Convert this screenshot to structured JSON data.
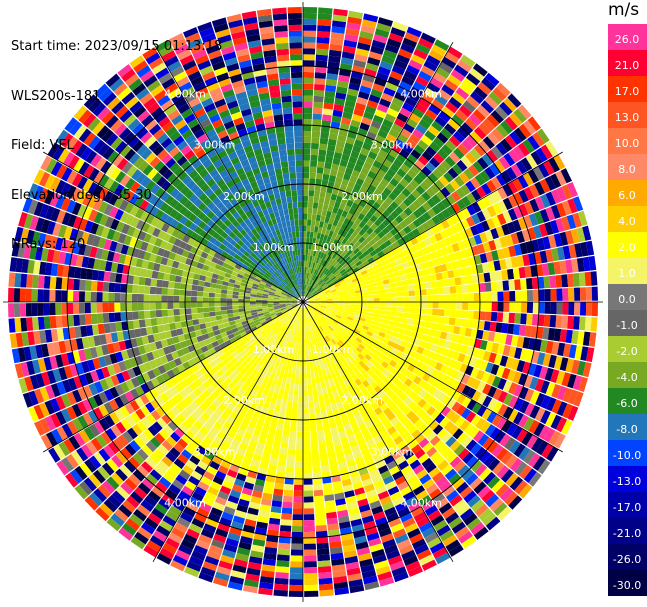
{
  "header": {
    "start_time": "Start time: 2023/09/15 01:13:18",
    "instrument": "WLS200s-181",
    "field": "Field: VEL",
    "elevation": "Elevation(deg): 35.30",
    "nrays": "NRays: 120"
  },
  "chart_data": {
    "type": "heatmap",
    "projection": "polar-ppi",
    "field": "VEL",
    "units": "m/s",
    "range_rings_km": [
      1,
      2,
      3,
      4
    ],
    "ring_labels": [
      "1.00km",
      "2.00km",
      "3.00km",
      "4.00km"
    ],
    "n_rays": 120,
    "colorbar": {
      "title": "m/s",
      "ticks": [
        "26.0",
        "21.0",
        "17.0",
        "13.0",
        "10.0",
        "8.0",
        "6.0",
        "4.0",
        "2.0",
        "1.0",
        "0.0",
        "-1.0",
        "-2.0",
        "-4.0",
        "-6.0",
        "-8.0",
        "-10.0",
        "-13.0",
        "-17.0",
        "-21.0",
        "-26.0",
        "-30.0"
      ],
      "colors": [
        "#ff3399",
        "#ff0033",
        "#ff3300",
        "#ff5522",
        "#ff7744",
        "#ff8866",
        "#ffaa00",
        "#ffcc00",
        "#ffff00",
        "#f4f466",
        "#777777",
        "#666666",
        "#aacc33",
        "#77aa22",
        "#228822",
        "#2277bb",
        "#0044ff",
        "#0000dd",
        "#0000aa",
        "#000088",
        "#000066",
        "#000044"
      ]
    },
    "regions": [
      {
        "azimuth_deg": [
          0,
          60
        ],
        "velocity_ms": -4.0
      },
      {
        "azimuth_deg": [
          60,
          150
        ],
        "velocity_ms": 3.0
      },
      {
        "azimuth_deg": [
          150,
          240
        ],
        "velocity_ms": 2.5
      },
      {
        "azimuth_deg": [
          240,
          300
        ],
        "velocity_ms": -1.5
      },
      {
        "azimuth_deg": [
          300,
          360
        ],
        "velocity_ms": -6.0
      }
    ]
  }
}
